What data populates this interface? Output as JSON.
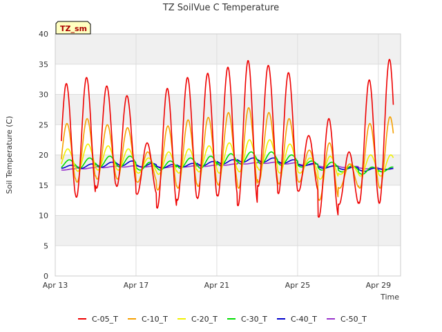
{
  "chart_data": {
    "type": "line",
    "title": "TZ SoilVue C Temperature",
    "site_tag": "TZ_sm",
    "xlabel": "Time",
    "ylabel": "Soil Temperature (C)",
    "ylim": [
      0,
      40
    ],
    "yticks": [
      0,
      5,
      10,
      15,
      20,
      25,
      30,
      35,
      40
    ],
    "xlim": [
      0,
      17.1
    ],
    "xticks": [
      {
        "x": 0,
        "label": "Apr 13"
      },
      {
        "x": 4,
        "label": "Apr 17"
      },
      {
        "x": 8,
        "label": "Apr 21"
      },
      {
        "x": 12,
        "label": "Apr 25"
      },
      {
        "x": 16,
        "label": "Apr 29"
      }
    ],
    "grid": true,
    "legend_position": "bottom",
    "x_start": 0.3,
    "x_end": 16.75,
    "series": [
      {
        "name": "C-05_T",
        "color": "#ee0000",
        "peak_phase": 0.55,
        "mins": [
          12.8,
          13.0,
          14.5,
          14.8,
          13.5,
          11.2,
          12.5,
          12.8,
          13.2,
          11.6,
          14.8,
          13.6,
          14.0,
          9.7,
          11.8,
          12.0,
          12.0
        ],
        "maxs": [
          31.8,
          32.8,
          31.4,
          29.8,
          22.0,
          31.0,
          32.8,
          33.5,
          34.5,
          35.6,
          34.8,
          33.6,
          23.2,
          26.0,
          20.5,
          32.4,
          35.8
        ]
      },
      {
        "name": "C-10_T",
        "color": "#f5a000",
        "peak_phase": 0.58,
        "mins": [
          15.2,
          15.5,
          16.0,
          16.0,
          15.5,
          14.2,
          14.5,
          14.8,
          15.0,
          14.5,
          15.5,
          15.2,
          15.5,
          12.5,
          14.5,
          14.5,
          14.5
        ],
        "maxs": [
          25.2,
          26.0,
          25.0,
          24.5,
          20.5,
          24.8,
          25.8,
          26.2,
          27.0,
          27.8,
          27.0,
          26.0,
          20.8,
          22.0,
          18.5,
          25.2,
          26.3
        ]
      },
      {
        "name": "C-20_T",
        "color": "#f0f000",
        "peak_phase": 0.62,
        "mins": [
          17.5,
          17.3,
          17.5,
          17.5,
          17.0,
          16.8,
          17.0,
          17.2,
          17.0,
          17.2,
          17.5,
          17.0,
          17.0,
          16.0,
          16.8,
          16.5,
          16.5
        ],
        "maxs": [
          21.0,
          21.8,
          21.5,
          21.0,
          19.5,
          20.5,
          21.0,
          21.5,
          22.0,
          22.5,
          22.5,
          21.8,
          19.5,
          19.8,
          18.5,
          20.0,
          20.0
        ]
      },
      {
        "name": "C-30_T",
        "color": "#00dd00",
        "peak_phase": 0.7,
        "mins": [
          17.8,
          17.8,
          18.0,
          18.0,
          17.5,
          17.5,
          17.8,
          17.8,
          18.2,
          18.5,
          18.5,
          18.3,
          18.0,
          17.5,
          17.2,
          16.8,
          17.2
        ],
        "maxs": [
          19.2,
          19.5,
          19.8,
          19.8,
          18.8,
          19.0,
          19.5,
          19.8,
          20.2,
          20.5,
          20.5,
          20.0,
          19.0,
          18.8,
          18.2,
          18.0,
          18.0
        ]
      },
      {
        "name": "C-40_T",
        "color": "#0000cc",
        "peak_phase": 0.8,
        "mins": [
          17.8,
          17.8,
          18.0,
          18.2,
          18.0,
          17.8,
          18.0,
          18.2,
          18.5,
          18.8,
          18.8,
          18.6,
          18.2,
          17.8,
          17.6,
          17.3,
          17.6
        ],
        "maxs": [
          18.3,
          18.5,
          18.8,
          19.0,
          18.6,
          18.4,
          18.6,
          18.9,
          19.2,
          19.5,
          19.5,
          19.2,
          18.6,
          18.2,
          18.0,
          17.8,
          17.8
        ]
      },
      {
        "name": "C-50_T",
        "color": "#9933cc",
        "peak_phase": 0.9,
        "mins": [
          17.5,
          17.7,
          17.9,
          18.0,
          18.0,
          17.9,
          18.0,
          18.1,
          18.3,
          18.5,
          18.6,
          18.5,
          18.3,
          18.0,
          17.9,
          17.7,
          17.6
        ],
        "maxs": [
          17.7,
          17.9,
          18.1,
          18.2,
          18.2,
          18.1,
          18.2,
          18.3,
          18.5,
          18.7,
          18.8,
          18.7,
          18.5,
          18.2,
          18.1,
          17.9,
          17.8
        ]
      }
    ]
  }
}
